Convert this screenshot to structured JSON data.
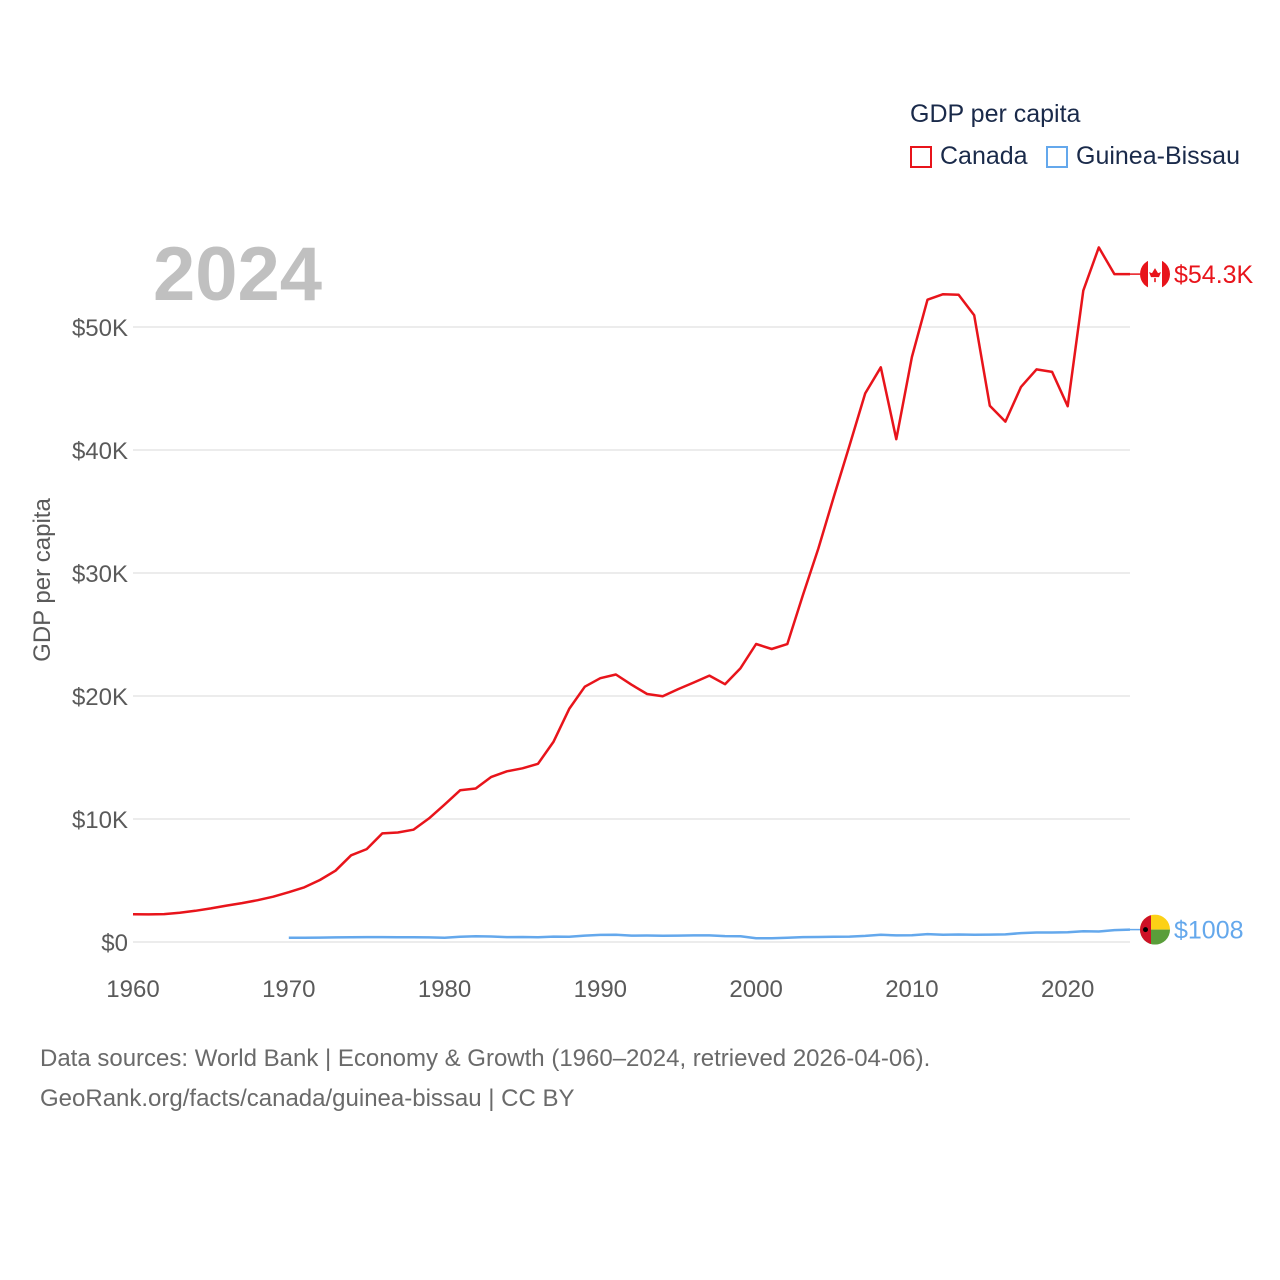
{
  "legend": {
    "title": "GDP per capita",
    "items": [
      {
        "label": "Canada",
        "color": "#e8141b"
      },
      {
        "label": "Guinea-Bissau",
        "color": "#64a8ec"
      }
    ]
  },
  "footer": {
    "line1": "Data sources: World Bank | Economy & Growth (1960–2024, retrieved 2026-04-06).",
    "line2": "GeoRank.org/facts/canada/guinea-bissau | CC BY"
  },
  "chart_data": {
    "type": "line",
    "title": "GDP per capita",
    "year_label": "2024",
    "xlabel": "",
    "ylabel": "GDP per capita",
    "xlim": [
      1960,
      2024
    ],
    "ylim": [
      0,
      50000
    ],
    "x_ticks": [
      "1960",
      "1970",
      "1980",
      "1990",
      "2000",
      "2010",
      "2020"
    ],
    "y_ticks": [
      {
        "value": 0,
        "label": "$0"
      },
      {
        "value": 10000,
        "label": "$10K"
      },
      {
        "value": 20000,
        "label": "$20K"
      },
      {
        "value": 30000,
        "label": "$30K"
      },
      {
        "value": 40000,
        "label": "$40K"
      },
      {
        "value": 50000,
        "label": "$50K"
      }
    ],
    "grid": true,
    "legend_position": "top-right",
    "series": [
      {
        "name": "Canada",
        "color": "#e8141b",
        "end_label": "$54.3K",
        "flag": "canada-flag-icon",
        "x": [
          1960,
          1961,
          1962,
          1963,
          1964,
          1965,
          1966,
          1967,
          1968,
          1969,
          1970,
          1971,
          1972,
          1973,
          1974,
          1975,
          1976,
          1977,
          1978,
          1979,
          1980,
          1981,
          1982,
          1983,
          1984,
          1985,
          1986,
          1987,
          1988,
          1989,
          1990,
          1991,
          1992,
          1993,
          1994,
          1995,
          1996,
          1997,
          1998,
          1999,
          2000,
          2001,
          2002,
          2003,
          2004,
          2005,
          2006,
          2007,
          2008,
          2009,
          2010,
          2011,
          2012,
          2013,
          2014,
          2015,
          2016,
          2017,
          2018,
          2019,
          2020,
          2021,
          2022,
          2023,
          2024
        ],
        "values": [
          2260,
          2240,
          2270,
          2380,
          2540,
          2730,
          2960,
          3160,
          3400,
          3680,
          4050,
          4450,
          5040,
          5800,
          7050,
          7550,
          8830,
          8900,
          9130,
          10050,
          11170,
          12330,
          12480,
          13420,
          13880,
          14120,
          14490,
          16290,
          18950,
          20760,
          21450,
          21750,
          20920,
          20160,
          19980,
          20560,
          21100,
          21660,
          20960,
          22260,
          24230,
          23820,
          24220,
          28200,
          32000,
          36250,
          40380,
          44600,
          46720,
          40880,
          47560,
          52220,
          52670,
          52630,
          50950,
          43600,
          42310,
          45130,
          46550,
          46350,
          43560,
          52960,
          56470,
          54300,
          54300
        ]
      },
      {
        "name": "Guinea-Bissau",
        "color": "#64a8ec",
        "end_label": "$1008",
        "flag": "guinea-bissau-flag-icon",
        "x": [
          1970,
          1971,
          1972,
          1973,
          1974,
          1975,
          1976,
          1977,
          1978,
          1979,
          1980,
          1981,
          1982,
          1983,
          1984,
          1985,
          1986,
          1987,
          1988,
          1989,
          1990,
          1991,
          1992,
          1993,
          1994,
          1995,
          1996,
          1997,
          1998,
          1999,
          2000,
          2001,
          2002,
          2003,
          2004,
          2005,
          2006,
          2007,
          2008,
          2009,
          2010,
          2011,
          2012,
          2013,
          2014,
          2015,
          2016,
          2017,
          2018,
          2019,
          2020,
          2021,
          2022,
          2023,
          2024
        ],
        "values": [
          340,
          340,
          360,
          370,
          390,
          400,
          400,
          390,
          380,
          370,
          350,
          430,
          460,
          450,
          400,
          410,
          380,
          440,
          430,
          520,
          580,
          590,
          520,
          530,
          510,
          520,
          540,
          540,
          480,
          460,
          300,
          310,
          350,
          400,
          410,
          430,
          440,
          500,
          590,
          540,
          550,
          640,
          590,
          610,
          590,
          600,
          620,
          720,
          770,
          770,
          800,
          880,
          850,
          970,
          1008
        ]
      }
    ]
  }
}
